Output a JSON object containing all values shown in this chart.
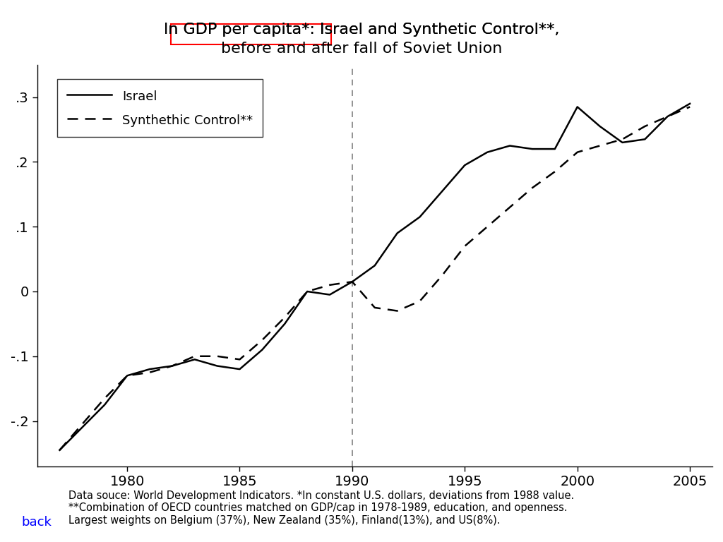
{
  "title_line1": "ln GDP per capita*: Israel and Synthetic Control**,",
  "title_line2": "before and after fall of Soviet Union",
  "xlabel": "",
  "ylabel": "",
  "xlim": [
    1976,
    2006
  ],
  "ylim": [
    -0.27,
    0.35
  ],
  "yticks": [
    -0.2,
    -0.1,
    0.0,
    0.1,
    0.2,
    0.3
  ],
  "ytick_labels": [
    "-.2",
    "-.1",
    "0",
    ".1",
    ".2",
    ".3"
  ],
  "xticks": [
    1980,
    1985,
    1990,
    1995,
    2000,
    2005
  ],
  "vline_x": 1990,
  "israel_x": [
    1977,
    1978,
    1979,
    1980,
    1981,
    1982,
    1983,
    1984,
    1985,
    1986,
    1987,
    1988,
    1989,
    1990,
    1991,
    1992,
    1993,
    1994,
    1995,
    1996,
    1997,
    1998,
    1999,
    2000,
    2001,
    2002,
    2003,
    2004,
    2005
  ],
  "israel_y": [
    -0.245,
    -0.21,
    -0.175,
    -0.13,
    -0.12,
    -0.115,
    -0.105,
    -0.115,
    -0.12,
    -0.09,
    -0.05,
    0.0,
    -0.005,
    0.015,
    0.04,
    0.09,
    0.115,
    0.155,
    0.195,
    0.215,
    0.225,
    0.22,
    0.22,
    0.285,
    0.255,
    0.23,
    0.235,
    0.27,
    0.29
  ],
  "synth_x": [
    1977,
    1978,
    1979,
    1980,
    1981,
    1982,
    1983,
    1984,
    1985,
    1986,
    1987,
    1988,
    1989,
    1990,
    1991,
    1992,
    1993,
    1994,
    1995,
    1996,
    1997,
    1998,
    1999,
    2000,
    2001,
    2002,
    2003,
    2004,
    2005
  ],
  "synth_y": [
    -0.245,
    -0.205,
    -0.165,
    -0.13,
    -0.125,
    -0.115,
    -0.1,
    -0.1,
    -0.105,
    -0.075,
    -0.04,
    0.0,
    0.01,
    0.015,
    -0.025,
    -0.03,
    -0.015,
    0.025,
    0.07,
    0.1,
    0.13,
    0.16,
    0.185,
    0.215,
    0.225,
    0.235,
    0.255,
    0.27,
    0.285
  ],
  "legend_israel": "Israel",
  "legend_synth": "Synthethic Control**",
  "footnote": "Data souce: World Development Indicators. *In constant U.S. dollars, deviations from 1988 value.\n**Combination of OECD countries matched on GDP/cap in 1978-1989, education, and openness.\nLargest weights on Belgium (37%), New Zealand (35%), Finland(13%), and US(8%).",
  "back_text": "back",
  "title_box_text": "GDP per capita*",
  "background_color": "#ffffff",
  "line_color": "#000000"
}
